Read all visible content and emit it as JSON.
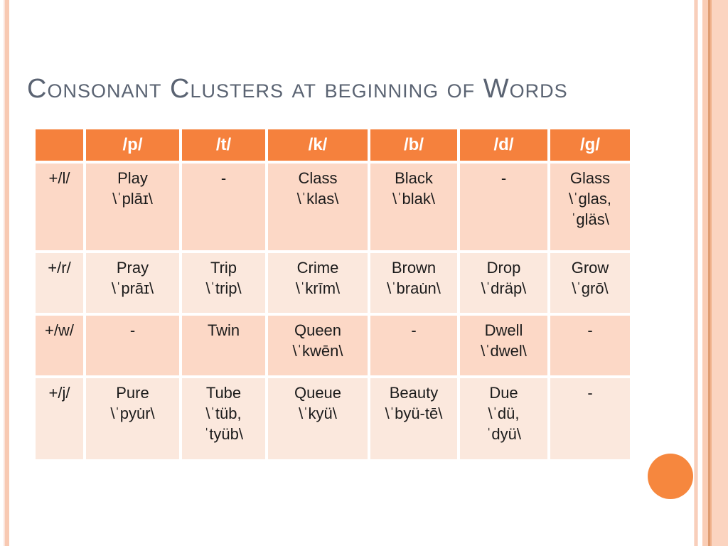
{
  "slide": {
    "title": "Consonant Clusters at beginning of Words"
  },
  "table": {
    "header": [
      "",
      "/p/",
      "/t/",
      "/k/",
      "/b/",
      "/d/",
      "/g/"
    ],
    "rows": [
      {
        "label": "+/l/",
        "cells": [
          [
            "Play",
            "\\ˈplāɪ\\"
          ],
          [
            "-"
          ],
          [
            "Class",
            "\\ˈklas\\"
          ],
          [
            "Black",
            "\\ˈblak\\"
          ],
          [
            "-"
          ],
          [
            "Glass",
            "\\ˈglas,",
            "ˈgläs\\"
          ]
        ]
      },
      {
        "label": "+/r/",
        "cells": [
          [
            "Pray",
            "\\ˈprāɪ\\"
          ],
          [
            "Trip",
            "\\ˈtrip\\"
          ],
          [
            "Crime",
            "\\ˈkrīm\\"
          ],
          [
            "Brown",
            "\\ˈbrau̇n\\"
          ],
          [
            "Drop",
            "\\ˈdräp\\"
          ],
          [
            "Grow",
            "\\ˈgrō\\"
          ]
        ]
      },
      {
        "label": "+/w/",
        "cells": [
          [
            "-"
          ],
          [
            "Twin"
          ],
          [
            "Queen",
            "\\ˈkwēn\\"
          ],
          [
            "-"
          ],
          [
            "Dwell",
            "\\ˈdwel\\"
          ],
          [
            "-"
          ]
        ]
      },
      {
        "label": "+/j/",
        "cells": [
          [
            "Pure",
            "\\ˈpyu̇r\\"
          ],
          [
            "Tube",
            "\\ˈtüb,",
            "ˈtyüb\\"
          ],
          [
            "Queue",
            "\\ˈkyü\\"
          ],
          [
            "Beauty",
            "\\ˈbyü-tē\\"
          ],
          [
            "Due",
            "\\ˈdü,",
            "ˈdyü\\"
          ],
          [
            "-"
          ]
        ]
      }
    ]
  },
  "colors": {
    "title": "#5A6372",
    "header_bg": "#F5813D",
    "header_text": "#FFFFFF",
    "row_dark": "#FCD8C6",
    "row_light": "#FBE8DD",
    "cell_text": "#1B1B1B",
    "accent_circle": "#F6873E",
    "stripe_light": "#FBE3DA",
    "stripe_peach": "#F8C9B2",
    "band": "#FACDB5",
    "band_line": "#DF9C71"
  }
}
